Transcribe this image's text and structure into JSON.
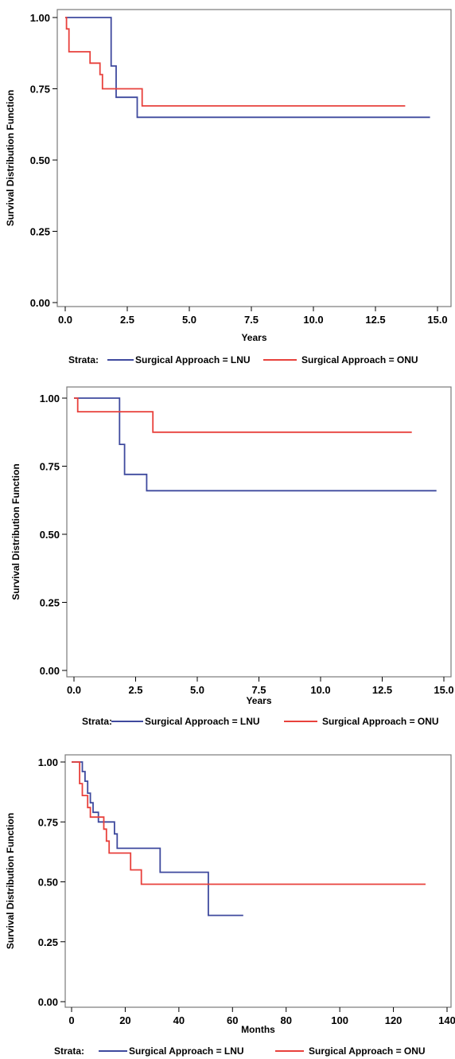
{
  "colors": {
    "lnu": "#3f4a9e",
    "onu": "#e8413c",
    "frame": "#7a7a7a"
  },
  "legend": {
    "strata_label": "Strata:",
    "lnu_label": "Surgical Approach = LNU",
    "onu_label": "Surgical Approach = ONU"
  },
  "chart_data": [
    {
      "type": "line",
      "step": true,
      "xlabel": "Years",
      "ylabel": "Survival Distribution Function",
      "xlim": [
        0,
        15
      ],
      "ylim": [
        0,
        1
      ],
      "xticks": [
        "0.0",
        "2.5",
        "5.0",
        "7.5",
        "10.0",
        "12.5",
        "15.0"
      ],
      "yticks": [
        "0.00",
        "0.25",
        "0.50",
        "0.75",
        "1.00"
      ],
      "series": [
        {
          "name": "Surgical Approach = LNU",
          "color": "#3f4a9e",
          "x": [
            0,
            1.85,
            2.05,
            2.9,
            14.7
          ],
          "y": [
            1.0,
            0.83,
            0.72,
            0.65,
            0.65
          ]
        },
        {
          "name": "Surgical Approach = ONU",
          "color": "#e8413c",
          "x": [
            0,
            0.05,
            0.15,
            1.0,
            1.4,
            1.5,
            3.1,
            13.7
          ],
          "y": [
            1.0,
            0.96,
            0.88,
            0.84,
            0.8,
            0.75,
            0.69,
            0.69
          ]
        }
      ]
    },
    {
      "type": "line",
      "step": true,
      "xlabel": "Years",
      "ylabel": "Survival Distribution Function",
      "xlim": [
        0,
        15
      ],
      "ylim": [
        0,
        1
      ],
      "xticks": [
        "0.0",
        "2.5",
        "5.0",
        "7.5",
        "10.0",
        "12.5",
        "15.0"
      ],
      "yticks": [
        "0.00",
        "0.25",
        "0.50",
        "0.75",
        "1.00"
      ],
      "series": [
        {
          "name": "Surgical Approach = LNU",
          "color": "#3f4a9e",
          "x": [
            0,
            1.85,
            2.05,
            2.95,
            14.7
          ],
          "y": [
            1.0,
            0.83,
            0.72,
            0.66,
            0.66
          ]
        },
        {
          "name": "Surgical Approach = ONU",
          "color": "#e8413c",
          "x": [
            0,
            0.15,
            3.2,
            13.7
          ],
          "y": [
            1.0,
            0.95,
            0.875,
            0.875
          ]
        }
      ]
    },
    {
      "type": "line",
      "step": true,
      "xlabel": "Months",
      "ylabel": "Survival Distribution Function",
      "xlim": [
        0,
        140
      ],
      "ylim": [
        0,
        1
      ],
      "xticks": [
        "0",
        "20",
        "40",
        "60",
        "80",
        "100",
        "120",
        "140"
      ],
      "yticks": [
        "0.00",
        "0.25",
        "0.50",
        "0.75",
        "1.00"
      ],
      "series": [
        {
          "name": "Surgical Approach = LNU",
          "color": "#3f4a9e",
          "x": [
            0,
            4,
            5,
            6,
            7,
            8,
            10,
            16,
            17,
            18,
            33,
            51,
            64
          ],
          "y": [
            1.0,
            0.96,
            0.92,
            0.87,
            0.83,
            0.79,
            0.75,
            0.7,
            0.64,
            0.64,
            0.54,
            0.36,
            0.36
          ]
        },
        {
          "name": "Surgical Approach = ONU",
          "color": "#e8413c",
          "x": [
            0,
            3,
            4,
            6,
            7,
            12,
            13,
            14,
            22,
            26,
            132
          ],
          "y": [
            1.0,
            0.91,
            0.86,
            0.81,
            0.77,
            0.72,
            0.67,
            0.62,
            0.55,
            0.49,
            0.49
          ]
        }
      ]
    }
  ]
}
